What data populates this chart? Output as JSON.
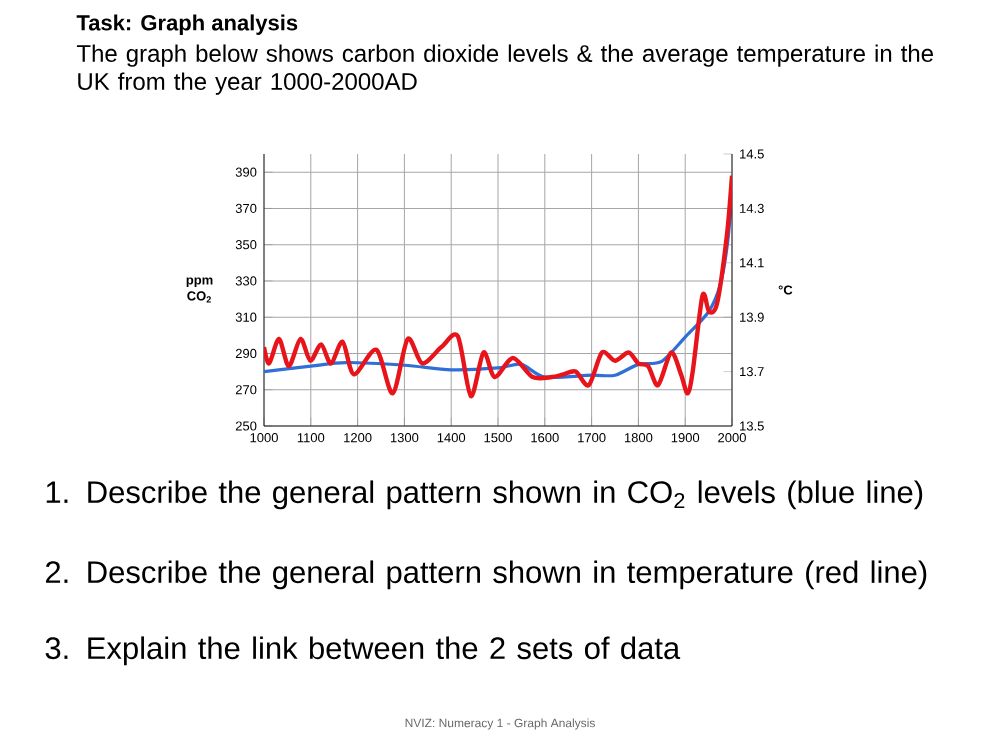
{
  "chart_data": {
    "type": "line",
    "title": "Task: Graph analysis",
    "subtitle": "The graph below shows carbon dioxide levels & the average temperature in the UK from the year 1000-2000AD",
    "ylabel": "ppm CO$_{2}$",
    "y2label": "°C",
    "xlim": [
      1000,
      2000
    ],
    "xticks": [
      1000,
      1100,
      1200,
      1300,
      1400,
      1500,
      1600,
      1700,
      1800,
      1900,
      2000
    ],
    "ylim": [
      250,
      400
    ],
    "yticks": [
      250,
      270,
      290,
      310,
      330,
      350,
      370,
      390
    ],
    "y2lim": [
      13.5,
      14.5
    ],
    "y2ticks": [
      13.5,
      13.7,
      13.9,
      14.1,
      14.3,
      14.5
    ],
    "grid": true,
    "series": [
      {
        "color": "#2f6fd6",
        "axis": "y",
        "x": [
          1000,
          1100,
          1175,
          1300,
          1400,
          1500,
          1550,
          1600,
          1700,
          1750,
          1800,
          1850,
          1900,
          1950,
          1975,
          1990,
          2000
        ],
        "values": [
          280,
          283,
          285,
          283.5,
          281,
          282,
          284,
          277,
          278,
          278,
          284,
          285.7,
          299,
          313,
          328,
          350,
          378
        ]
      },
      {
        "color": "#e8141b",
        "axis": "y2",
        "x": [
          1000,
          1011,
          1032,
          1053,
          1078,
          1099,
          1122,
          1143,
          1168,
          1192,
          1240,
          1275,
          1307,
          1338,
          1379,
          1414,
          1442,
          1469,
          1493,
          1532,
          1574,
          1615,
          1640,
          1666,
          1694,
          1722,
          1750,
          1779,
          1800,
          1821,
          1842,
          1870,
          1891,
          1905,
          1916,
          1937,
          1951,
          1968,
          1989,
          2000
        ],
        "values": [
          13.79,
          13.73,
          13.82,
          13.72,
          13.82,
          13.74,
          13.8,
          13.73,
          13.81,
          13.69,
          13.78,
          13.62,
          13.82,
          13.73,
          13.79,
          13.83,
          13.61,
          13.77,
          13.68,
          13.75,
          13.68,
          13.68,
          13.69,
          13.7,
          13.65,
          13.77,
          13.74,
          13.77,
          13.73,
          13.72,
          13.65,
          13.77,
          13.69,
          13.62,
          13.7,
          13.98,
          13.92,
          13.95,
          14.2,
          14.42
        ]
      }
    ],
    "annotations": [
      "1. Describe the general pattern shown in CO$_{2}$ levels (blue line)",
      "2. Describe the general pattern shown in temperature (red line)",
      "3. Explain the link between the 2 sets of data",
      "NVIZ: Numeracy 1 -  Graph Analysis"
    ]
  }
}
